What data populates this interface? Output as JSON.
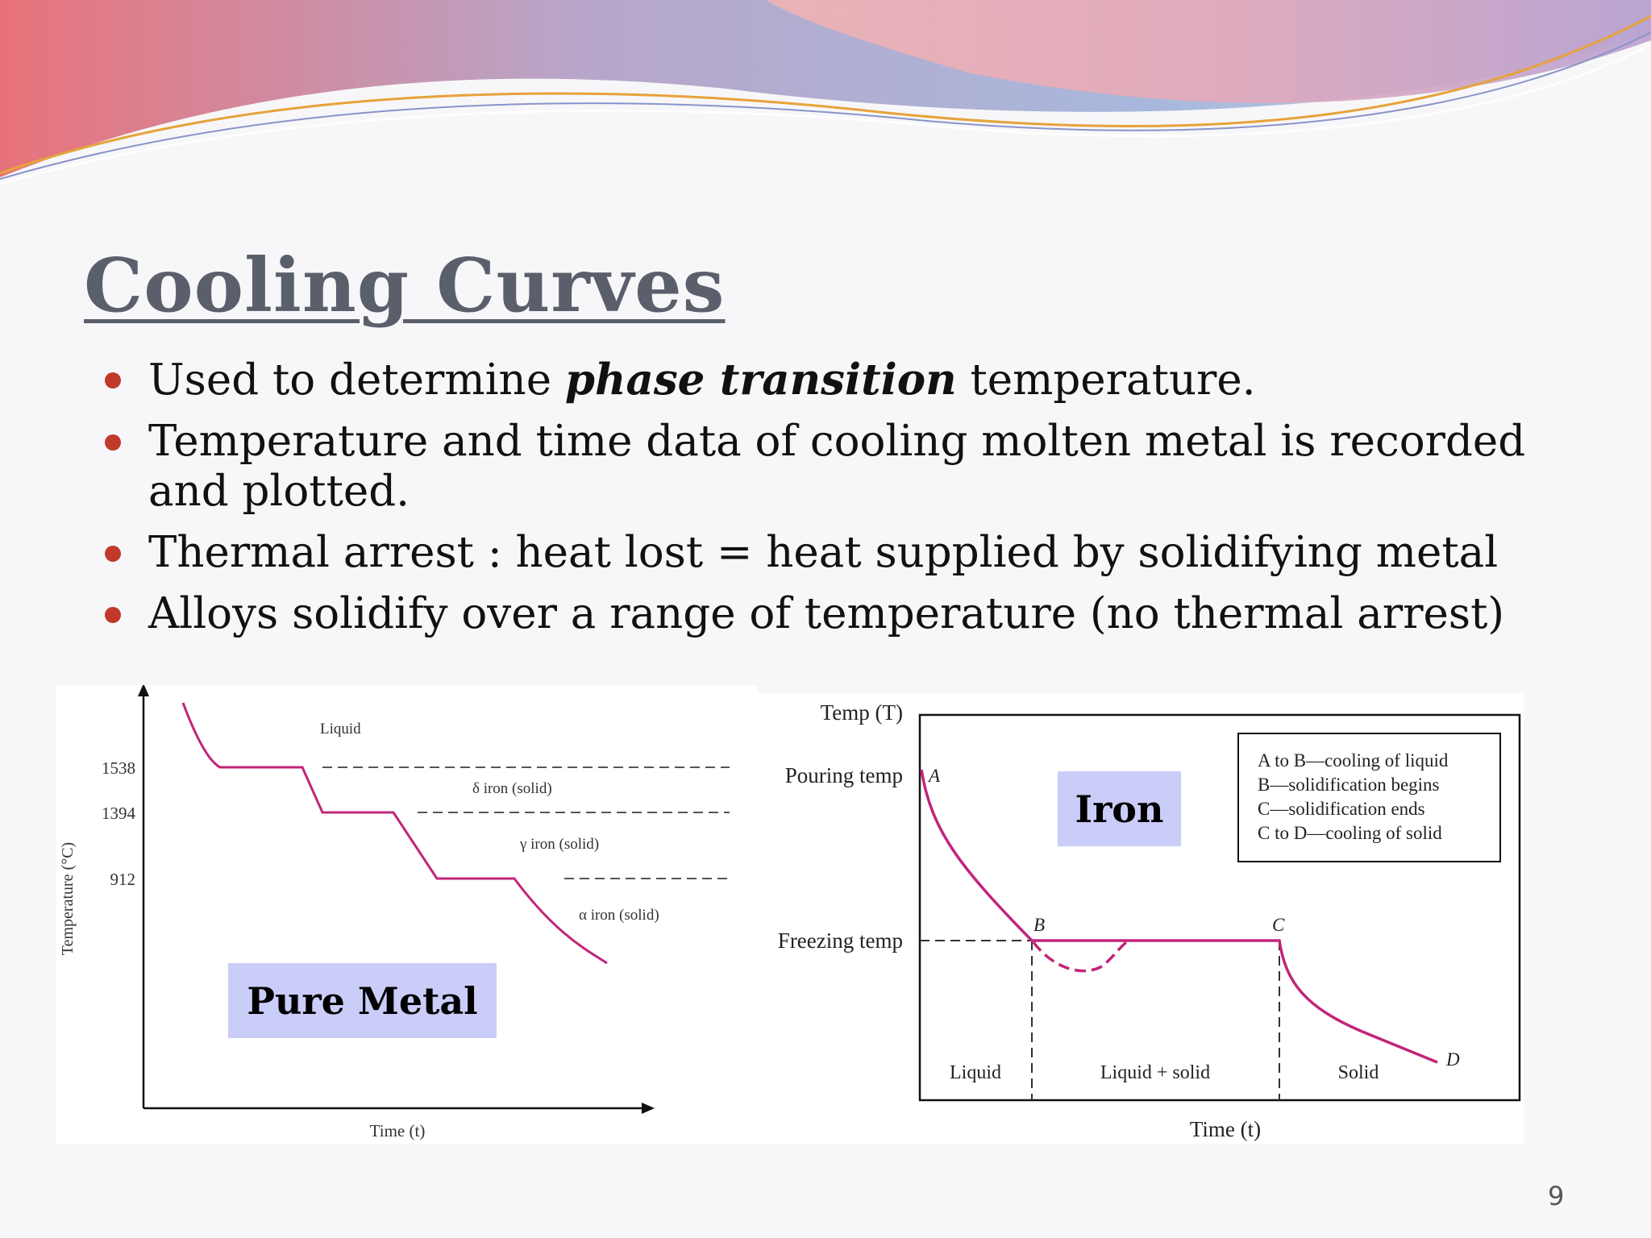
{
  "slide": {
    "title": "Cooling Curves",
    "page_number": "9",
    "bullets": [
      {
        "before": "Used to determine ",
        "emphasis": "phase transition",
        "after": " temperature."
      },
      {
        "text_line1": "Temperature and time data of cooling molten metal is recorded",
        "text_line2": "and plotted."
      },
      {
        "text": "Thermal arrest : heat lost = heat supplied by solidifying metal"
      },
      {
        "text": "Alloys solidify over a range of temperature (no thermal arrest)"
      }
    ]
  },
  "pure_metal_diagram": {
    "label": "Pure Metal",
    "ylabel": "Temperature (°C)",
    "xlabel": "Time (t)",
    "ticks": [
      "1538",
      "1394",
      "912"
    ],
    "regions": [
      "Liquid",
      "δ iron (solid)",
      "γ iron (solid)",
      "α iron (solid)"
    ],
    "curve_color": "#c2247a"
  },
  "iron_diagram": {
    "label": "Iron",
    "ylabel": "Temp (T)",
    "xlabel": "Time (t)",
    "pouring_temp": "Pouring temp",
    "freezing_temp": "Freezing temp",
    "points": [
      "A",
      "B",
      "C",
      "D"
    ],
    "regions": [
      "Liquid",
      "Liquid + solid",
      "Solid"
    ],
    "legend": [
      "A to B—cooling of liquid",
      "B—solidification begins",
      "C—solidification ends",
      "C to D—cooling of solid"
    ],
    "curve_color": "#c2247a"
  },
  "colors": {
    "title": "#5a5f6b",
    "bullet": "#c0392b",
    "label_box": "#c9cdf7",
    "curve": "#c2247a"
  }
}
